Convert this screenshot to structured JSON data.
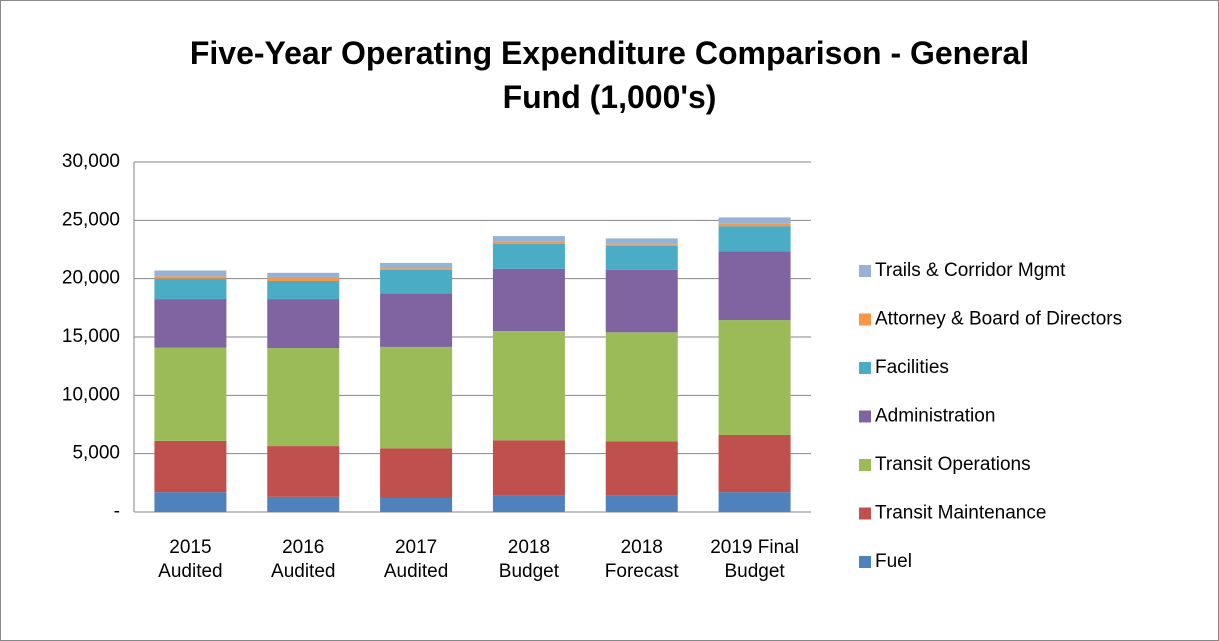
{
  "chart_data": {
    "type": "stacked_bar",
    "title": "Five-Year Operating Expenditure Comparison - General Fund  (1,000's)",
    "categories": [
      "2015 Audited",
      "2016 Audited",
      "2017 Audited",
      "2018 Budget",
      "2018 Forecast",
      "2019 Final Budget"
    ],
    "series": [
      {
        "name": "Fuel",
        "color": "#4f81bd",
        "values": [
          1700,
          1300,
          1200,
          1450,
          1400,
          1700
        ]
      },
      {
        "name": "Transit Maintenance",
        "color": "#c0504d",
        "values": [
          4400,
          4350,
          4250,
          4700,
          4650,
          4900
        ]
      },
      {
        "name": "Transit Operations",
        "color": "#9bbb59",
        "values": [
          8000,
          8400,
          8700,
          9350,
          9350,
          9850
        ]
      },
      {
        "name": "Administration",
        "color": "#8064a2",
        "values": [
          4150,
          4200,
          4600,
          5350,
          5350,
          5900
        ]
      },
      {
        "name": "Facilities",
        "color": "#4bacc6",
        "values": [
          1750,
          1550,
          2000,
          2150,
          2050,
          2150
        ]
      },
      {
        "name": "Attorney & Board of Directors",
        "color": "#f79646",
        "values": [
          200,
          250,
          150,
          150,
          150,
          200
        ]
      },
      {
        "name": "Trails & Corridor Mgmt",
        "color": "#95b3d7",
        "values": [
          500,
          450,
          450,
          500,
          500,
          550
        ]
      }
    ],
    "ylim": [
      0,
      30000
    ],
    "yticks": [
      {
        "value": 0,
        "label": "-"
      },
      {
        "value": 5000,
        "label": "5,000"
      },
      {
        "value": 10000,
        "label": "10,000"
      },
      {
        "value": 15000,
        "label": "15,000"
      },
      {
        "value": 20000,
        "label": "20,000"
      },
      {
        "value": 25000,
        "label": "25,000"
      },
      {
        "value": 30000,
        "label": "30,000"
      }
    ],
    "grid": true,
    "legend": "right"
  }
}
